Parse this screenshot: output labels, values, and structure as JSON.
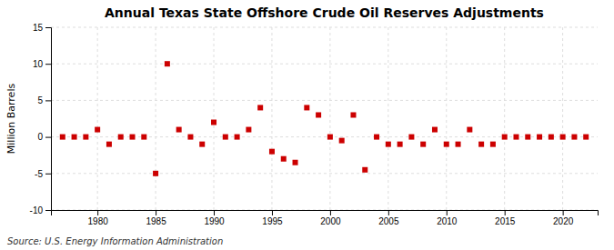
{
  "chart_data": {
    "type": "scatter",
    "title": "Annual Texas State Offshore Crude Oil Reserves Adjustments",
    "ylabel": "Million Barrels",
    "annotation": "Source: U.S. Energy Information Administration",
    "x": [
      1977,
      1978,
      1979,
      1980,
      1981,
      1982,
      1983,
      1984,
      1985,
      1986,
      1987,
      1988,
      1989,
      1990,
      1991,
      1992,
      1993,
      1994,
      1995,
      1996,
      1997,
      1998,
      1999,
      2000,
      2001,
      2002,
      2003,
      2004,
      2005,
      2006,
      2007,
      2008,
      2009,
      2010,
      2011,
      2012,
      2013,
      2014,
      2015,
      2016,
      2017,
      2018,
      2019,
      2020,
      2021,
      2022
    ],
    "values": [
      0,
      0,
      0,
      1,
      -1,
      0,
      0,
      0,
      -5,
      10,
      1,
      0,
      -1,
      2,
      0,
      0,
      1,
      4,
      -2,
      -3,
      -3.5,
      4,
      3,
      0,
      -0.5,
      3,
      -4.5,
      0,
      -1,
      -1,
      0,
      -1,
      1,
      -1,
      -1,
      1,
      -1,
      -1,
      0,
      0,
      0,
      0,
      0,
      0,
      0,
      0
    ],
    "color": "#cc0000",
    "marker": "square",
    "xlim": [
      1976,
      2023
    ],
    "ylim": [
      -10,
      15
    ],
    "xticks": [
      1980,
      1985,
      1990,
      1995,
      2000,
      2005,
      2010,
      2015,
      2020
    ],
    "yticks": [
      -10,
      -5,
      0,
      5,
      10,
      15
    ],
    "grid": true
  }
}
